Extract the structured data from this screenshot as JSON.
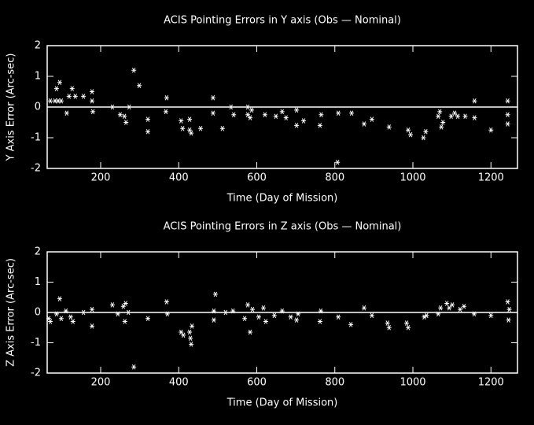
{
  "chart_data": [
    {
      "type": "scatter",
      "title": "ACIS Pointing Errors in Y axis (Obs — Nominal)",
      "x_label": "Time (Day of Mission)",
      "y_label": "Y Axis Error (Arc-sec)",
      "x": [
        71,
        83,
        87,
        91,
        95,
        99,
        113,
        119,
        127,
        135,
        156,
        178,
        180,
        178,
        230,
        250,
        261,
        265,
        273,
        285,
        299,
        321,
        321,
        367,
        369,
        406,
        410,
        428,
        428,
        432,
        456,
        488,
        488,
        512,
        534,
        541,
        577,
        577,
        583,
        587,
        621,
        649,
        665,
        675,
        702,
        702,
        720,
        762,
        765,
        807,
        809,
        843,
        875,
        895,
        939,
        988,
        994,
        1027,
        1033,
        1065,
        1069,
        1073,
        1077,
        1098,
        1107,
        1115,
        1134,
        1158,
        1158,
        1200,
        1243,
        1243,
        1243
      ],
      "values": [
        0.2,
        0.2,
        0.6,
        0.2,
        0.8,
        0.2,
        -0.2,
        0.35,
        0.6,
        0.35,
        0.35,
        0.5,
        -0.15,
        0.2,
        0,
        -0.25,
        -0.3,
        -0.5,
        0,
        1.2,
        0.7,
        -0.4,
        -0.8,
        -0.15,
        0.3,
        -0.45,
        -0.7,
        -0.4,
        -0.75,
        -0.85,
        -0.7,
        0.3,
        -0.2,
        -0.7,
        0,
        -0.25,
        0,
        -0.25,
        -0.35,
        -0.1,
        -0.25,
        -0.3,
        -0.15,
        -0.35,
        -0.6,
        -0.1,
        -0.45,
        -0.6,
        -0.25,
        -1.8,
        -0.2,
        -0.2,
        -0.55,
        -0.4,
        -0.65,
        -0.75,
        -0.9,
        -1.0,
        -0.8,
        -0.3,
        -0.15,
        -0.65,
        -0.5,
        -0.3,
        -0.2,
        -0.3,
        -0.3,
        0.2,
        -0.35,
        -0.75,
        0.2,
        -0.25,
        -0.55
      ],
      "color": "#ffffff",
      "xlim": [
        63,
        1268
      ],
      "ylim": [
        -2,
        2
      ],
      "xticks": [
        200,
        400,
        600,
        800,
        1000,
        1200
      ],
      "yticks": [
        -2,
        -1,
        0,
        1,
        2
      ],
      "hline": 0
    },
    {
      "type": "scatter",
      "title": "ACIS Pointing Errors in  Z axis (Obs — Nominal)",
      "x_label": "Time (Day of Mission)",
      "y_label": "Z Axis Error (Arc-sec)",
      "x": [
        67,
        71,
        87,
        95,
        99,
        111,
        123,
        129,
        156,
        178,
        178,
        230,
        244,
        258,
        264,
        271,
        262,
        285,
        321,
        369,
        371,
        406,
        412,
        428,
        430,
        432,
        434,
        490,
        494,
        490,
        520,
        539,
        569,
        577,
        583,
        589,
        605,
        617,
        623,
        645,
        665,
        687,
        702,
        706,
        762,
        764,
        809,
        841,
        875,
        895,
        935,
        939,
        984,
        988,
        1029,
        1035,
        1065,
        1071,
        1087,
        1093,
        1101,
        1121,
        1131,
        1157,
        1200,
        1243,
        1247,
        1245
      ],
      "values": [
        -0.2,
        -0.3,
        -0.05,
        0.45,
        -0.2,
        0.05,
        -0.15,
        -0.3,
        0,
        0.1,
        -0.45,
        0.25,
        -0.05,
        0.2,
        0.3,
        0,
        -0.3,
        -1.8,
        -0.2,
        0.35,
        -0.05,
        -0.65,
        -0.75,
        -0.65,
        -0.85,
        -1.05,
        -0.45,
        0.05,
        0.6,
        -0.25,
        0,
        0.05,
        -0.2,
        0.25,
        -0.65,
        0.1,
        -0.15,
        0.15,
        -0.3,
        -0.1,
        0.05,
        -0.15,
        -0.25,
        -0.05,
        -0.3,
        0.05,
        -0.15,
        -0.4,
        0.15,
        -0.1,
        -0.35,
        -0.5,
        -0.35,
        -0.5,
        -0.15,
        -0.1,
        -0.05,
        0.15,
        0.3,
        0.15,
        0.25,
        0.1,
        0.2,
        -0.05,
        -0.1,
        0.35,
        0.1,
        -0.25
      ],
      "color": "#ffffff",
      "xlim": [
        63,
        1268
      ],
      "ylim": [
        -2,
        2
      ],
      "xticks": [
        200,
        400,
        600,
        800,
        1000,
        1200
      ],
      "yticks": [
        -2,
        -1,
        0,
        1,
        2
      ],
      "hline": 0
    }
  ]
}
